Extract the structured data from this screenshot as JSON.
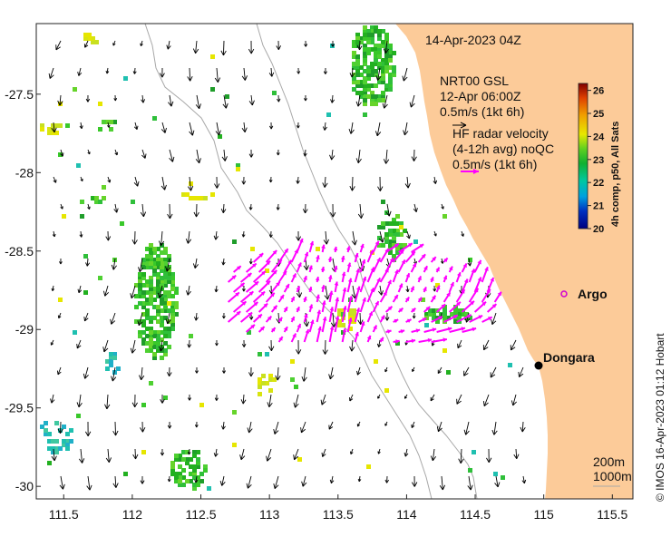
{
  "map": {
    "date_label": "14-Apr-2023 04Z",
    "model_title": "NRT00 GSL",
    "model_time": "12-Apr 06:00Z",
    "model_scale": "0.5m/s (1kt 6h)",
    "radar_line1": "HF radar velocity",
    "radar_line2": "(4-12h avg) noQC",
    "radar_scale": "0.5m/s (1kt 6h)",
    "depth_200": "200m",
    "depth_1000": "1000m",
    "argo_label": "Argo",
    "town_label": "Dongara",
    "credit": "© IMOS 16-Apr-2023 01:12 Hobart",
    "land_color": "#FCCB99",
    "vector_color": "#000000",
    "radar_color": "#FF00FF"
  },
  "axes": {
    "x_ticks": [
      "111.5",
      "112",
      "112.5",
      "113",
      "113.5",
      "114",
      "114.5",
      "115",
      "115.5"
    ],
    "x_values": [
      111.5,
      112,
      112.5,
      113,
      113.5,
      114,
      114.5,
      115,
      115.5
    ],
    "y_ticks": [
      "-27.5",
      "-28",
      "-28.5",
      "-29",
      "-29.5",
      "-30"
    ],
    "y_values": [
      -27.5,
      -28,
      -28.5,
      -29,
      -29.5,
      -30
    ],
    "x_range": [
      111.3,
      115.65
    ],
    "y_range": [
      -30.08,
      -27.05
    ]
  },
  "colorbar": {
    "label": "4h comp, p50, All Sats",
    "ticks": [
      "20",
      "21",
      "22",
      "23",
      "24",
      "25",
      "26"
    ],
    "range": [
      20,
      26.3
    ]
  },
  "markers": {
    "argo": {
      "lon": 114.95,
      "lat": -28.86
    },
    "dongara": {
      "lon": 114.93,
      "lat": -29.25
    }
  }
}
